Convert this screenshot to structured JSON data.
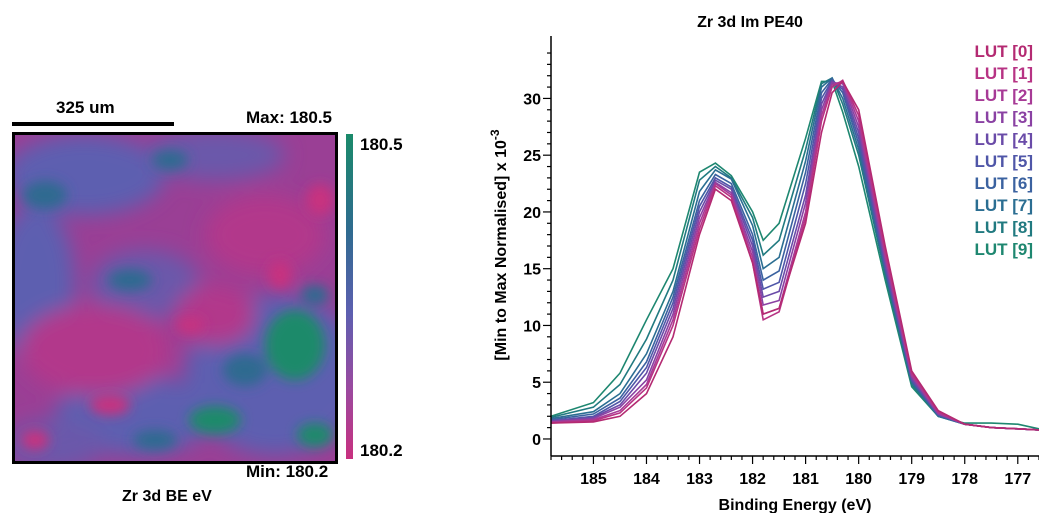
{
  "map": {
    "scalebar_label": "325 um",
    "max_label": "Max: 180.5",
    "min_label": "Min: 180.2",
    "colorbar_max": "180.5",
    "colorbar_min": "180.2",
    "title": "Zr 3d BE eV",
    "colors": {
      "magenta": "#c8307f",
      "purple": "#9a3f95",
      "blue": "#5d5fb0",
      "teal": "#2f6b90",
      "green": "#1a8a6a"
    }
  },
  "chart_data": {
    "type": "line",
    "title": "Zr 3d Im PE40",
    "xlabel": "Binding Energy (eV)",
    "ylabel": "[Min to Max Normalised]  x 10",
    "ylabel_exponent": "-3",
    "x_reversed": true,
    "xlim": [
      185.8,
      176.6
    ],
    "ylim": [
      -1.5,
      35.5
    ],
    "xticks": [
      185,
      184,
      183,
      182,
      181,
      180,
      179,
      178,
      177
    ],
    "yticks": [
      0,
      5,
      10,
      15,
      20,
      25,
      30
    ],
    "legend_position": "top-right",
    "x": [
      185.8,
      185.0,
      184.5,
      184.0,
      183.5,
      183.0,
      182.7,
      182.4,
      182.0,
      181.8,
      181.5,
      181.0,
      180.7,
      180.5,
      180.3,
      180.0,
      179.5,
      179.0,
      178.5,
      178.0,
      177.5,
      177.0,
      176.6
    ],
    "series": [
      {
        "name": "LUT [0]",
        "color": "#b42a72",
        "values": [
          1.4,
          1.5,
          2.0,
          4.0,
          9.0,
          18.0,
          22.0,
          21.0,
          15.5,
          11.0,
          11.5,
          19.0,
          27.0,
          30.5,
          31.5,
          29.0,
          17.0,
          6.0,
          2.5,
          1.3,
          1.0,
          0.9,
          0.8
        ]
      },
      {
        "name": "LUT [1]",
        "color": "#b73384",
        "values": [
          1.4,
          1.6,
          2.3,
          4.5,
          10.0,
          18.5,
          22.3,
          21.3,
          15.5,
          10.5,
          11.2,
          19.5,
          28.0,
          31.0,
          31.6,
          28.5,
          16.5,
          5.8,
          2.4,
          1.3,
          1.0,
          0.9,
          0.8
        ]
      },
      {
        "name": "LUT [2]",
        "color": "#a73a96",
        "values": [
          1.5,
          1.7,
          2.5,
          4.8,
          10.5,
          19.0,
          22.5,
          21.5,
          16.0,
          11.0,
          11.5,
          20.0,
          28.5,
          31.2,
          31.5,
          28.0,
          16.2,
          5.6,
          2.3,
          1.3,
          1.0,
          0.9,
          0.8
        ]
      },
      {
        "name": "LUT [3]",
        "color": "#8a41a3",
        "values": [
          1.5,
          1.8,
          2.8,
          5.2,
          11.0,
          19.5,
          22.6,
          21.7,
          16.5,
          11.8,
          12.2,
          20.8,
          29.0,
          31.4,
          31.3,
          27.5,
          15.8,
          5.5,
          2.2,
          1.3,
          1.0,
          0.9,
          0.8
        ]
      },
      {
        "name": "LUT [4]",
        "color": "#6a4ba8",
        "values": [
          1.6,
          1.9,
          3.0,
          5.8,
          11.5,
          20.0,
          22.8,
          22.0,
          17.0,
          12.5,
          13.0,
          21.5,
          29.5,
          31.5,
          31.0,
          27.0,
          15.5,
          5.3,
          2.2,
          1.3,
          1.0,
          0.9,
          0.8
        ]
      },
      {
        "name": "LUT [5]",
        "color": "#4f56a8",
        "values": [
          1.6,
          2.0,
          3.3,
          6.3,
          12.0,
          20.5,
          23.0,
          22.2,
          17.5,
          13.2,
          13.8,
          22.5,
          30.0,
          31.6,
          30.8,
          26.5,
          15.2,
          5.2,
          2.1,
          1.3,
          1.0,
          0.9,
          0.8
        ]
      },
      {
        "name": "LUT [6]",
        "color": "#3b62a0",
        "values": [
          1.7,
          2.2,
          3.6,
          6.8,
          12.5,
          21.0,
          23.3,
          22.5,
          18.0,
          14.0,
          14.8,
          23.5,
          30.5,
          31.7,
          30.5,
          26.0,
          15.0,
          5.1,
          2.1,
          1.3,
          1.0,
          0.9,
          0.8
        ]
      },
      {
        "name": "LUT [7]",
        "color": "#2b6e92",
        "values": [
          1.8,
          2.4,
          4.0,
          7.5,
          13.0,
          21.8,
          23.7,
          22.9,
          18.8,
          15.0,
          16.0,
          24.5,
          31.0,
          31.8,
          30.0,
          25.5,
          14.8,
          5.0,
          2.0,
          1.3,
          1.0,
          0.9,
          0.8
        ]
      },
      {
        "name": "LUT [8]",
        "color": "#217a80",
        "values": [
          1.9,
          2.8,
          4.8,
          8.8,
          14.0,
          22.8,
          24.0,
          23.0,
          19.5,
          16.2,
          17.5,
          25.5,
          31.3,
          31.8,
          29.5,
          25.0,
          14.5,
          4.8,
          2.0,
          1.3,
          1.0,
          0.9,
          0.8
        ]
      },
      {
        "name": "LUT [9]",
        "color": "#1e8770",
        "values": [
          2.0,
          3.2,
          5.8,
          10.5,
          15.0,
          23.5,
          24.3,
          23.2,
          20.0,
          17.5,
          19.0,
          26.5,
          31.5,
          31.5,
          28.8,
          24.0,
          14.0,
          4.6,
          2.0,
          1.4,
          1.4,
          1.3,
          0.9
        ]
      }
    ]
  }
}
